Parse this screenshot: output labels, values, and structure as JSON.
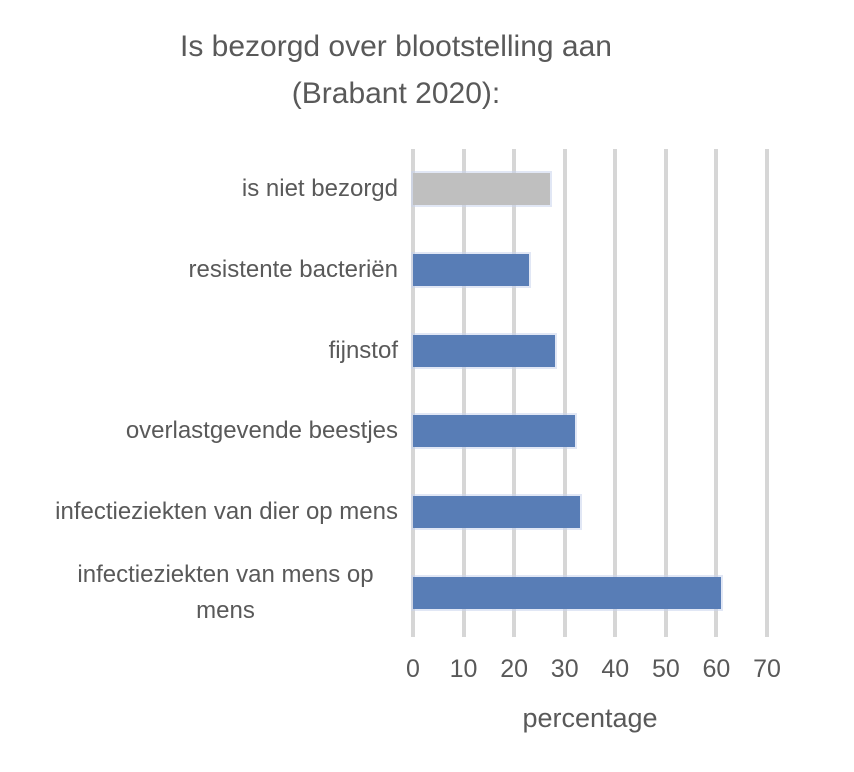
{
  "title": {
    "line1": "Is bezorgd over blootstelling aan",
    "line2": "(Brabant 2020):"
  },
  "chart_data": {
    "type": "bar",
    "orientation": "horizontal",
    "title": "Is bezorgd over blootstelling aan (Brabant 2020):",
    "categories": [
      "is niet bezorgd",
      "resistente bacteriën",
      "fijnstof",
      "overlastgevende beestjes",
      "infectieziekten van dier op mens",
      "infectieziekten van mens op mens"
    ],
    "values": [
      27,
      23,
      28,
      32,
      33,
      61
    ],
    "bar_colors": [
      "#bfbfbf",
      "#587db6",
      "#587db6",
      "#587db6",
      "#587db6",
      "#587db6"
    ],
    "xlabel": "percentage",
    "ylabel": "",
    "xlim": [
      0,
      70
    ],
    "xticks": [
      0,
      10,
      20,
      30,
      40,
      50,
      60,
      70
    ],
    "grid": true,
    "legend": "none"
  },
  "colors": {
    "text": "#595959",
    "bar_blue": "#587db6",
    "bar_gray": "#bfbfbf",
    "gridline": "#d6d6d6",
    "background": "#ffffff"
  }
}
